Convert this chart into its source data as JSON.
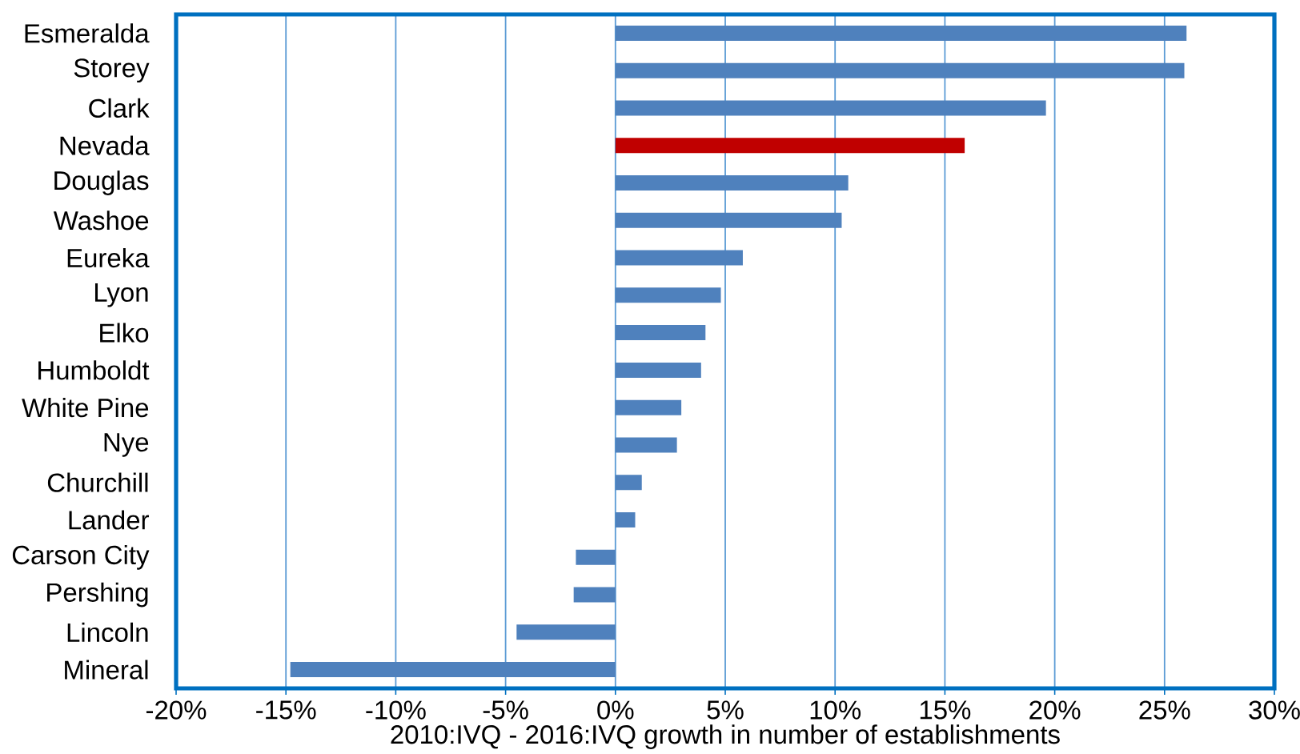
{
  "chart_data": {
    "type": "bar",
    "orientation": "horizontal",
    "xlabel": "2010:IVQ - 2016:IVQ growth in number of establishments",
    "categories": [
      "Esmeralda",
      "Storey",
      "Clark",
      "Nevada",
      "Douglas",
      "Washoe",
      "Eureka",
      "Lyon",
      "Elko",
      "Humboldt",
      "White Pine",
      "Nye",
      "Churchill",
      "Lander",
      "Carson City",
      "Pershing",
      "Lincoln",
      "Mineral"
    ],
    "values": [
      26.0,
      25.9,
      19.6,
      15.9,
      10.6,
      10.3,
      5.8,
      4.8,
      4.1,
      3.9,
      3.0,
      2.8,
      1.2,
      0.9,
      -1.8,
      -1.9,
      -4.5,
      -14.8
    ],
    "colors": [
      "#4f81bd",
      "#4f81bd",
      "#4f81bd",
      "#c00000",
      "#4f81bd",
      "#4f81bd",
      "#4f81bd",
      "#4f81bd",
      "#4f81bd",
      "#4f81bd",
      "#4f81bd",
      "#4f81bd",
      "#4f81bd",
      "#4f81bd",
      "#4f81bd",
      "#4f81bd",
      "#4f81bd",
      "#4f81bd"
    ],
    "xlim": [
      -20,
      30
    ],
    "xticks": [
      {
        "value": -20,
        "label": "-20%"
      },
      {
        "value": -15,
        "label": "-15%"
      },
      {
        "value": -10,
        "label": "-10%"
      },
      {
        "value": -5,
        "label": "-5%"
      },
      {
        "value": 0,
        "label": "0%"
      },
      {
        "value": 5,
        "label": "5%"
      },
      {
        "value": 10,
        "label": "10%"
      },
      {
        "value": 15,
        "label": "15%"
      },
      {
        "value": 20,
        "label": "20%"
      },
      {
        "value": 25,
        "label": "25%"
      },
      {
        "value": 30,
        "label": "30%"
      }
    ],
    "grid": "x"
  }
}
